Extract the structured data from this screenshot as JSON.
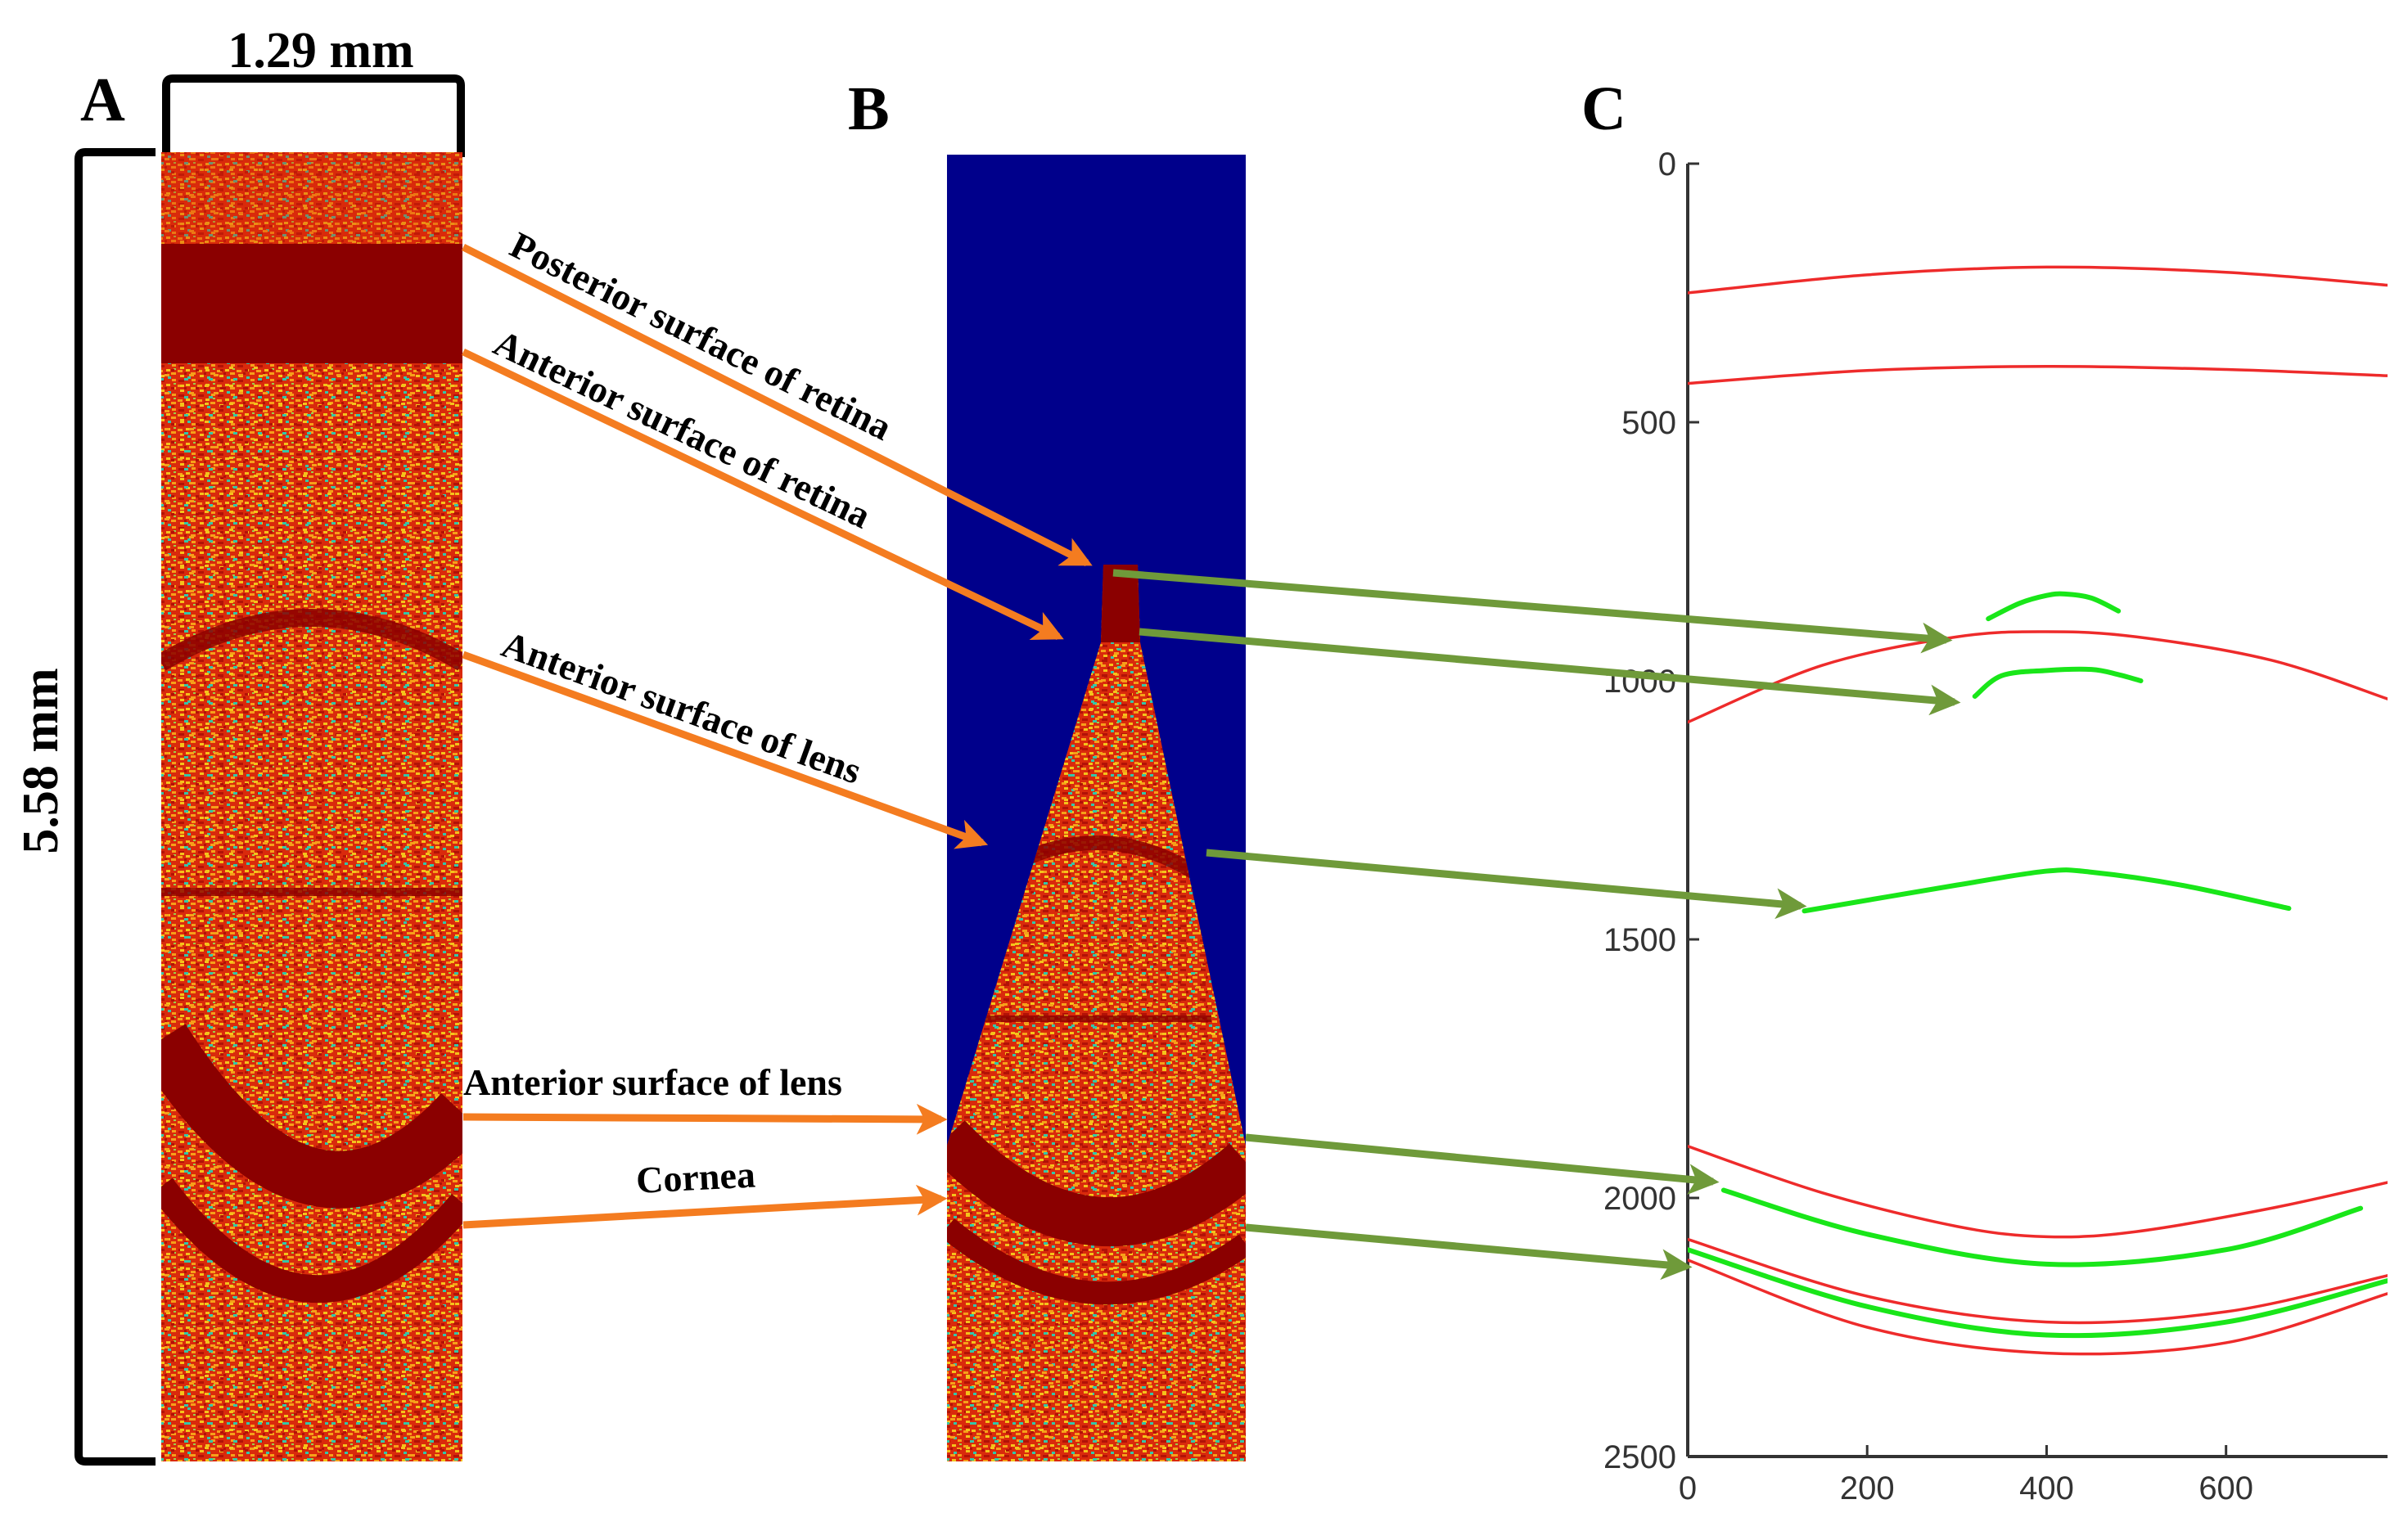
{
  "panels": {
    "a": {
      "label": "A",
      "width_dim": "1.29 mm",
      "height_dim": "5.58 mm"
    },
    "b": {
      "label": "B"
    },
    "c": {
      "label": "C"
    }
  },
  "annotations": [
    "Posterior surface of retina",
    "Anterior surface of retina",
    "Anterior surface of lens",
    "Anterior surface of lens",
    "Cornea"
  ],
  "colors": {
    "orange_arrow": "#f47c20",
    "green_arrow": "#6f9a3a",
    "red_curve": "#ee2b2b",
    "green_curve": "#19e619",
    "heatmap_dark": "#8b0000",
    "heatmap_mid": "#d92a0c",
    "heatmap_light": "#f6a01a",
    "heatmap_cyan": "#35c6a8",
    "background_b": "#00008b"
  },
  "chart_data": {
    "type": "line",
    "xlim": [
      0,
      780
    ],
    "ylim": [
      0,
      2500
    ],
    "y_reversed": true,
    "x_ticks": [
      "0",
      "200",
      "400",
      "600"
    ],
    "y_ticks": [
      "0",
      "500",
      "1000",
      "1500",
      "2000",
      "2500"
    ],
    "series": [
      {
        "color": "red",
        "points": [
          [
            0,
            250
          ],
          [
            200,
            215
          ],
          [
            400,
            200
          ],
          [
            600,
            210
          ],
          [
            780,
            235
          ]
        ]
      },
      {
        "color": "red",
        "points": [
          [
            0,
            425
          ],
          [
            200,
            400
          ],
          [
            400,
            392
          ],
          [
            600,
            398
          ],
          [
            780,
            410
          ]
        ]
      },
      {
        "color": "red",
        "points": [
          [
            0,
            1080
          ],
          [
            150,
            970
          ],
          [
            300,
            915
          ],
          [
            400,
            905
          ],
          [
            500,
            915
          ],
          [
            650,
            960
          ],
          [
            780,
            1035
          ]
        ]
      },
      {
        "color": "green",
        "points": [
          [
            335,
            880
          ],
          [
            370,
            850
          ],
          [
            400,
            835
          ],
          [
            420,
            832
          ],
          [
            450,
            840
          ],
          [
            480,
            865
          ]
        ]
      },
      {
        "color": "green",
        "points": [
          [
            320,
            1030
          ],
          [
            350,
            990
          ],
          [
            400,
            980
          ],
          [
            450,
            978
          ],
          [
            480,
            988
          ],
          [
            505,
            1000
          ]
        ]
      },
      {
        "color": "green",
        "points": [
          [
            130,
            1445
          ],
          [
            300,
            1395
          ],
          [
            400,
            1368
          ],
          [
            450,
            1370
          ],
          [
            550,
            1395
          ],
          [
            670,
            1440
          ]
        ]
      },
      {
        "color": "red",
        "points": [
          [
            0,
            1900
          ],
          [
            150,
            1990
          ],
          [
            300,
            2055
          ],
          [
            400,
            2075
          ],
          [
            500,
            2065
          ],
          [
            650,
            2020
          ],
          [
            780,
            1970
          ]
        ]
      },
      {
        "color": "green",
        "points": [
          [
            40,
            1985
          ],
          [
            200,
            2070
          ],
          [
            400,
            2128
          ],
          [
            600,
            2100
          ],
          [
            750,
            2020
          ]
        ]
      },
      {
        "color": "red",
        "points": [
          [
            0,
            2080
          ],
          [
            200,
            2190
          ],
          [
            400,
            2240
          ],
          [
            600,
            2220
          ],
          [
            780,
            2150
          ]
        ]
      },
      {
        "color": "green",
        "points": [
          [
            0,
            2100
          ],
          [
            200,
            2210
          ],
          [
            400,
            2265
          ],
          [
            600,
            2240
          ],
          [
            780,
            2160
          ]
        ]
      },
      {
        "color": "red",
        "points": [
          [
            0,
            2120
          ],
          [
            200,
            2250
          ],
          [
            400,
            2300
          ],
          [
            600,
            2280
          ],
          [
            780,
            2185
          ]
        ]
      }
    ]
  }
}
